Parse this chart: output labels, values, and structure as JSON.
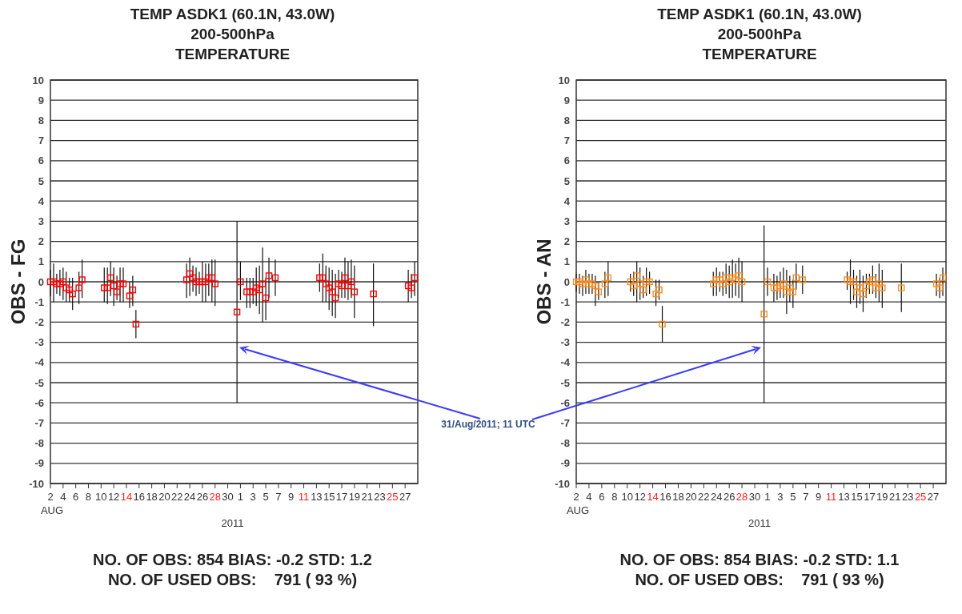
{
  "chart_data": [
    {
      "type": "scatter",
      "title": "TEMP ASDK1 (60.1N, 43.0W)",
      "subtitle": "200-500hPa\nTEMPERATURE",
      "ylabel": "OBS - FG",
      "xlabel": "2011",
      "marker": "square",
      "grid": "y",
      "x": [
        "2011-08-02T00:00",
        "2011-08-02T12:00",
        "2011-08-03T00:00",
        "2011-08-03T12:00",
        "2011-08-04T00:00",
        "2011-08-04T12:00",
        "2011-08-05T00:00",
        "2011-08-05T12:00",
        "2011-08-06T12:00",
        "2011-08-07T00:00",
        "2011-08-10T12:00",
        "2011-08-11T00:00",
        "2011-08-11T12:00",
        "2011-08-12T00:00",
        "2011-08-12T12:00",
        "2011-08-13T00:00",
        "2011-08-13T12:00",
        "2011-08-14T12:00",
        "2011-08-15T00:00",
        "2011-08-15T12:00",
        "2011-08-23T12:00",
        "2011-08-24T00:00",
        "2011-08-24T12:00",
        "2011-08-25T00:00",
        "2011-08-25T12:00",
        "2011-08-26T00:00",
        "2011-08-26T12:00",
        "2011-08-27T00:00",
        "2011-08-27T12:00",
        "2011-08-28T00:00",
        "2011-08-31T11:00",
        "2011-09-01T00:00",
        "2011-09-02T00:00",
        "2011-09-02T12:00",
        "2011-09-03T00:00",
        "2011-09-03T12:00",
        "2011-09-04T00:00",
        "2011-09-04T12:00",
        "2011-09-05T00:00",
        "2011-09-05T12:00",
        "2011-09-06T12:00",
        "2011-09-13T12:00",
        "2011-09-14T00:00",
        "2011-09-14T12:00",
        "2011-09-15T00:00",
        "2011-09-15T12:00",
        "2011-09-16T00:00",
        "2011-09-16T12:00",
        "2011-09-17T00:00",
        "2011-09-17T12:00",
        "2011-09-18T00:00",
        "2011-09-18T12:00",
        "2011-09-19T00:00",
        "2011-09-22T00:00",
        "2011-09-27T12:00",
        "2011-09-28T00:00",
        "2011-09-28T12:00"
      ],
      "series": [
        {
          "color": "#ff0000",
          "values": [
            0,
            0,
            -0.1,
            -0.1,
            0,
            -0.3,
            -0.4,
            -0.6,
            -0.3,
            0.1,
            -0.3,
            -0.3,
            0.2,
            -0.2,
            -0.5,
            -0.1,
            -0.1,
            -0.7,
            -0.4,
            -2.1,
            0.1,
            0.4,
            0.2,
            0,
            0,
            0,
            0,
            0.2,
            0.2,
            -0.1,
            -1.5,
            0,
            -0.5,
            -0.5,
            -0.5,
            -0.3,
            -0.4,
            -0.1,
            -0.8,
            0.3,
            0.2,
            0.2,
            0.2,
            -0.1,
            -0.3,
            -0.5,
            -0.8,
            -0.1,
            -0.2,
            0.2,
            -0.2,
            0,
            -0.5,
            -0.6,
            -0.2,
            -0.3,
            0.2
          ],
          "errors": [
            [
              -0.7,
              0.6
            ],
            [
              -1,
              0.9
            ],
            [
              -0.6,
              0.4
            ],
            [
              -0.7,
              0.6
            ],
            [
              -0.9,
              0.7
            ],
            [
              -1,
              0.5
            ],
            [
              -1,
              0.2
            ],
            [
              -1.4,
              0.2
            ],
            [
              -1.1,
              0.5
            ],
            [
              -0.8,
              1.1
            ],
            [
              -1,
              0.7
            ],
            [
              -1.1,
              0.7
            ],
            [
              -0.7,
              1
            ],
            [
              -1.2,
              0.7
            ],
            [
              -0.9,
              0.3
            ],
            [
              -1,
              0.7
            ],
            [
              -1,
              0.7
            ],
            [
              -1.3,
              0
            ],
            [
              -1.2,
              0.3
            ],
            [
              -2.8,
              -1.4
            ],
            [
              -0.8,
              0.9
            ],
            [
              -0.7,
              1.2
            ],
            [
              -0.5,
              0.8
            ],
            [
              -0.7,
              0.7
            ],
            [
              -0.6,
              0.5
            ],
            [
              -1,
              1
            ],
            [
              -1,
              0.9
            ],
            [
              -0.7,
              0.9
            ],
            [
              -1,
              1.1
            ],
            [
              -1.2,
              1.1
            ],
            [
              -6,
              3
            ],
            [
              -0.9,
              1
            ],
            [
              -1.3,
              0.2
            ],
            [
              -1.3,
              0.2
            ],
            [
              -1.1,
              0.2
            ],
            [
              -1.2,
              0.7
            ],
            [
              -1.6,
              0.8
            ],
            [
              -2,
              1.7
            ],
            [
              -1.9,
              0.2
            ],
            [
              -0.8,
              1.2
            ],
            [
              -0.7,
              1.1
            ],
            [
              -0.5,
              0.9
            ],
            [
              -1,
              1.4
            ],
            [
              -1,
              0.8
            ],
            [
              -1.4,
              0.7
            ],
            [
              -1.7,
              0.6
            ],
            [
              -1.8,
              0.4
            ],
            [
              -0.8,
              0.6
            ],
            [
              -0.8,
              0.5
            ],
            [
              -0.8,
              1.2
            ],
            [
              -0.9,
              1
            ],
            [
              -0.8,
              1.1
            ],
            [
              -1.8,
              0.8
            ],
            [
              -2.2,
              0.9
            ],
            [
              -1,
              0.6
            ],
            [
              -0.8,
              0.4
            ],
            [
              -0.7,
              1
            ]
          ]
        }
      ],
      "xlim": [
        "2011-08-02T00:00",
        "2011-09-29T00:00"
      ],
      "xticks": [
        {
          "value": "2011-08-02",
          "label": "2\nAUG"
        },
        {
          "value": "2011-08-04",
          "label": "4"
        },
        {
          "value": "2011-08-06",
          "label": "6"
        },
        {
          "value": "2011-08-08",
          "label": "8"
        },
        {
          "value": "2011-08-10",
          "label": "10"
        },
        {
          "value": "2011-08-12",
          "label": "12"
        },
        {
          "value": "2011-08-14",
          "label": "14"
        },
        {
          "value": "2011-08-16",
          "label": "16"
        },
        {
          "value": "2011-08-18",
          "label": "18"
        },
        {
          "value": "2011-08-20",
          "label": "20"
        },
        {
          "value": "2011-08-22",
          "label": "22"
        },
        {
          "value": "2011-08-24",
          "label": "24"
        },
        {
          "value": "2011-08-26",
          "label": "26"
        },
        {
          "value": "2011-08-28",
          "label": "28"
        },
        {
          "value": "2011-08-30",
          "label": "30"
        },
        {
          "value": "2011-09-01",
          "label": "1"
        },
        {
          "value": "2011-09-03",
          "label": "3"
        },
        {
          "value": "2011-09-05",
          "label": "5"
        },
        {
          "value": "2011-09-07",
          "label": "7"
        },
        {
          "value": "2011-09-09",
          "label": "9"
        },
        {
          "value": "2011-09-11",
          "label": "11"
        },
        {
          "value": "2011-09-13",
          "label": "13"
        },
        {
          "value": "2011-09-15",
          "label": "15"
        },
        {
          "value": "2011-09-17",
          "label": "17"
        },
        {
          "value": "2011-09-19",
          "label": "19"
        },
        {
          "value": "2011-09-21",
          "label": "21"
        },
        {
          "value": "2011-09-23",
          "label": "23"
        },
        {
          "value": "2011-09-25",
          "label": "25"
        },
        {
          "value": "2011-09-27",
          "label": "27"
        }
      ],
      "ylim": [
        -10,
        10
      ],
      "yticks": [
        -10,
        -9,
        -8,
        -7,
        -6,
        -5,
        -4,
        -3,
        -2,
        -1,
        0,
        1,
        2,
        3,
        4,
        5,
        6,
        7,
        8,
        9,
        10
      ],
      "annotations": [
        "31/Aug/2011; 11 UTC",
        "NO. OF OBS: 854 BIAS: -0.2 STD: 1.2",
        "NO. OF USED OBS:    791 ( 93 %)"
      ]
    },
    {
      "type": "scatter",
      "title": "TEMP ASDK1 (60.1N, 43.0W)",
      "subtitle": "200-500hPa\nTEMPERATURE",
      "ylabel": "OBS - AN",
      "xlabel": "2011",
      "marker": "square",
      "grid": "y",
      "x": [
        "2011-08-02T00:00",
        "2011-08-02T12:00",
        "2011-08-03T00:00",
        "2011-08-03T12:00",
        "2011-08-04T00:00",
        "2011-08-04T12:00",
        "2011-08-05T00:00",
        "2011-08-05T12:00",
        "2011-08-06T12:00",
        "2011-08-07T00:00",
        "2011-08-10T12:00",
        "2011-08-11T00:00",
        "2011-08-11T12:00",
        "2011-08-12T00:00",
        "2011-08-12T12:00",
        "2011-08-13T00:00",
        "2011-08-13T12:00",
        "2011-08-14T12:00",
        "2011-08-15T00:00",
        "2011-08-15T12:00",
        "2011-08-23T12:00",
        "2011-08-24T00:00",
        "2011-08-24T12:00",
        "2011-08-25T00:00",
        "2011-08-25T12:00",
        "2011-08-26T00:00",
        "2011-08-26T12:00",
        "2011-08-27T00:00",
        "2011-08-27T12:00",
        "2011-08-28T00:00",
        "2011-08-31T11:00",
        "2011-09-01T00:00",
        "2011-09-02T00:00",
        "2011-09-02T12:00",
        "2011-09-03T00:00",
        "2011-09-03T12:00",
        "2011-09-04T00:00",
        "2011-09-04T12:00",
        "2011-09-05T00:00",
        "2011-09-05T12:00",
        "2011-09-06T12:00",
        "2011-09-13T12:00",
        "2011-09-14T00:00",
        "2011-09-14T12:00",
        "2011-09-15T00:00",
        "2011-09-15T12:00",
        "2011-09-16T00:00",
        "2011-09-16T12:00",
        "2011-09-17T00:00",
        "2011-09-17T12:00",
        "2011-09-18T00:00",
        "2011-09-18T12:00",
        "2011-09-19T00:00",
        "2011-09-22T00:00",
        "2011-09-27T12:00",
        "2011-09-28T00:00",
        "2011-09-28T12:00"
      ],
      "series": [
        {
          "color": "#ff8c1a",
          "values": [
            0,
            0,
            -0.1,
            0.1,
            -0.1,
            -0.1,
            -0.2,
            -0.5,
            -0.1,
            0.2,
            0,
            -0.2,
            0.3,
            -0.1,
            -0.4,
            0,
            0,
            -0.6,
            -0.4,
            -2.1,
            -0.1,
            0.1,
            0.1,
            -0.1,
            0.2,
            0,
            0.2,
            0.1,
            0.3,
            0,
            -1.6,
            0,
            -0.3,
            -0.3,
            -0.2,
            -0.1,
            -0.5,
            -0.3,
            -0.5,
            0.2,
            0.1,
            0.1,
            0,
            0,
            -0.5,
            -0.3,
            -0.6,
            -0.2,
            0,
            0.1,
            -0.3,
            -0.1,
            -0.3,
            -0.3,
            -0.1,
            -0.3,
            0.2
          ],
          "errors": [
            [
              -0.5,
              0.4
            ],
            [
              -0.6,
              0.4
            ],
            [
              -0.7,
              0.3
            ],
            [
              -0.6,
              0.6
            ],
            [
              -0.6,
              0.4
            ],
            [
              -0.6,
              0.4
            ],
            [
              -1.2,
              0.3
            ],
            [
              -0.9,
              0
            ],
            [
              -0.8,
              0.5
            ],
            [
              -0.7,
              1
            ],
            [
              -0.5,
              0.4
            ],
            [
              -0.7,
              0.5
            ],
            [
              -1,
              1
            ],
            [
              -0.9,
              0.7
            ],
            [
              -0.8,
              0.3
            ],
            [
              -0.7,
              0.7
            ],
            [
              -0.6,
              0.5
            ],
            [
              -1.2,
              0.1
            ],
            [
              -0.9,
              0.1
            ],
            [
              -3,
              -1.2
            ],
            [
              -0.7,
              0.5
            ],
            [
              -0.7,
              0.7
            ],
            [
              -0.5,
              0.5
            ],
            [
              -0.7,
              0.5
            ],
            [
              -0.6,
              0.9
            ],
            [
              -0.8,
              0.8
            ],
            [
              -0.8,
              1.1
            ],
            [
              -0.7,
              0.9
            ],
            [
              -0.8,
              1.2
            ],
            [
              -1,
              1
            ],
            [
              -6,
              2.8
            ],
            [
              -0.7,
              0.7
            ],
            [
              -1,
              0.4
            ],
            [
              -0.9,
              0.3
            ],
            [
              -0.8,
              0.5
            ],
            [
              -0.8,
              0.7
            ],
            [
              -1.6,
              0.6
            ],
            [
              -1,
              0.3
            ],
            [
              -1.3,
              0.1
            ],
            [
              -0.4,
              0.9
            ],
            [
              -0.6,
              0.8
            ],
            [
              -0.4,
              0.5
            ],
            [
              -1.1,
              1.1
            ],
            [
              -0.9,
              0.6
            ],
            [
              -1.3,
              0.3
            ],
            [
              -1.1,
              0.6
            ],
            [
              -1.5,
              0.3
            ],
            [
              -0.8,
              0.4
            ],
            [
              -0.6,
              0.4
            ],
            [
              -0.6,
              0.8
            ],
            [
              -0.8,
              0.4
            ],
            [
              -1,
              0.9
            ],
            [
              -1.3,
              0.6
            ],
            [
              -1.5,
              0.9
            ],
            [
              -0.7,
              0.4
            ],
            [
              -0.8,
              0.2
            ],
            [
              -0.7,
              0.7
            ]
          ]
        }
      ],
      "xlim": [
        "2011-08-02T00:00",
        "2011-09-29T00:00"
      ],
      "xticks": [
        {
          "value": "2011-08-02",
          "label": "2\nAUG"
        },
        {
          "value": "2011-08-04",
          "label": "4"
        },
        {
          "value": "2011-08-06",
          "label": "6"
        },
        {
          "value": "2011-08-08",
          "label": "8"
        },
        {
          "value": "2011-08-10",
          "label": "10"
        },
        {
          "value": "2011-08-12",
          "label": "12"
        },
        {
          "value": "2011-08-14",
          "label": "14"
        },
        {
          "value": "2011-08-16",
          "label": "16"
        },
        {
          "value": "2011-08-18",
          "label": "18"
        },
        {
          "value": "2011-08-20",
          "label": "20"
        },
        {
          "value": "2011-08-22",
          "label": "22"
        },
        {
          "value": "2011-08-24",
          "label": "24"
        },
        {
          "value": "2011-08-26",
          "label": "26"
        },
        {
          "value": "2011-08-28",
          "label": "28"
        },
        {
          "value": "2011-08-30",
          "label": "30"
        },
        {
          "value": "2011-09-01",
          "label": "1"
        },
        {
          "value": "2011-09-03",
          "label": "3"
        },
        {
          "value": "2011-09-05",
          "label": "5"
        },
        {
          "value": "2011-09-07",
          "label": "7"
        },
        {
          "value": "2011-09-09",
          "label": "9"
        },
        {
          "value": "2011-09-11",
          "label": "11"
        },
        {
          "value": "2011-09-13",
          "label": "13"
        },
        {
          "value": "2011-09-15",
          "label": "15"
        },
        {
          "value": "2011-09-17",
          "label": "17"
        },
        {
          "value": "2011-09-19",
          "label": "19"
        },
        {
          "value": "2011-09-21",
          "label": "21"
        },
        {
          "value": "2011-09-23",
          "label": "23"
        },
        {
          "value": "2011-09-25",
          "label": "25"
        },
        {
          "value": "2011-09-27",
          "label": "27"
        }
      ],
      "ylim": [
        -10,
        10
      ],
      "yticks": [
        -10,
        -9,
        -8,
        -7,
        -6,
        -5,
        -4,
        -3,
        -2,
        -1,
        0,
        1,
        2,
        3,
        4,
        5,
        6,
        7,
        8,
        9,
        10
      ],
      "annotations": [
        "NO. OF OBS: 854 BIAS: -0.2 STD: 1.1",
        "NO. OF USED OBS:    791 ( 93 %)"
      ]
    }
  ]
}
